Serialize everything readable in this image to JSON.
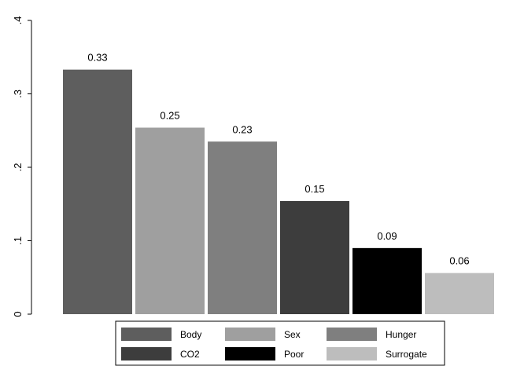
{
  "chart_data": {
    "type": "bar",
    "categories": [
      "Body",
      "Sex",
      "Hunger",
      "CO2",
      "Poor",
      "Surrogate"
    ],
    "values": [
      0.33,
      0.25,
      0.23,
      0.15,
      0.09,
      0.06
    ],
    "bar_values": [
      0.333,
      0.254,
      0.235,
      0.154,
      0.09,
      0.056
    ],
    "data_labels": [
      "0.33",
      "0.25",
      "0.23",
      "0.15",
      "0.09",
      "0.06"
    ],
    "colors": [
      "#5e5e5e",
      "#9f9f9f",
      "#7f7f7f",
      "#3d3d3d",
      "#000000",
      "#bdbdbd"
    ],
    "yticks": [
      0,
      0.1,
      0.2,
      0.3,
      0.4
    ],
    "ytick_labels": [
      "0",
      ".1",
      ".2",
      ".3",
      ".4"
    ],
    "ylim": [
      0,
      0.4
    ],
    "title": "",
    "xlabel": "",
    "ylabel": "",
    "grid": false,
    "legend": {
      "placement": "bottom",
      "columns": 3,
      "entries": [
        "Body",
        "Sex",
        "Hunger",
        "CO2",
        "Poor",
        "Surrogate"
      ]
    }
  }
}
